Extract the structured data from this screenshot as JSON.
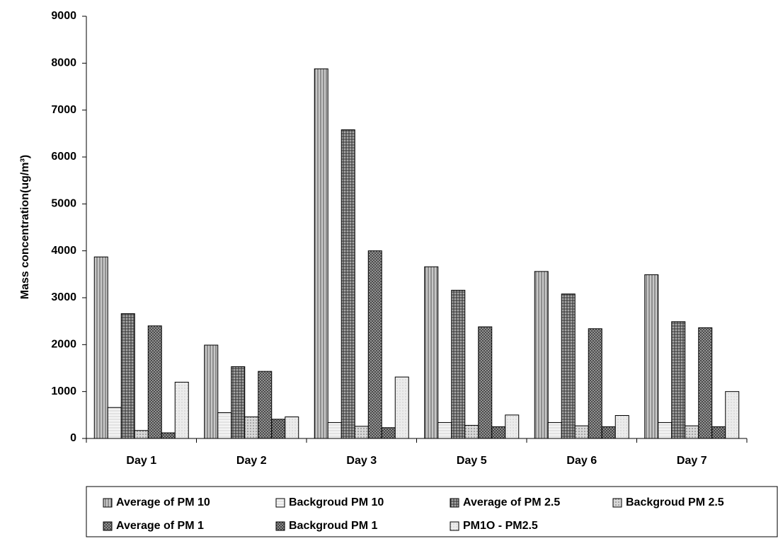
{
  "chart_data": {
    "type": "bar",
    "y_label": "Mass concentration(ug/m³)",
    "categories": [
      "Day 1",
      "Day 2",
      "Day 3",
      "Day 5",
      "Day 6",
      "Day 7"
    ],
    "series": [
      {
        "name": "Average of PM 10",
        "color": "#c8c8c8",
        "values": [
          3870,
          1990,
          7880,
          3660,
          3560,
          3490
        ]
      },
      {
        "name": "Backgroud PM 10",
        "color": "#f4f4f4",
        "values": [
          660,
          550,
          340,
          340,
          340,
          340
        ]
      },
      {
        "name": "Average of PM 2.5",
        "color": "#a8a8a8",
        "values": [
          2660,
          1530,
          6580,
          3160,
          3080,
          2490
        ]
      },
      {
        "name": "Backgroud PM 2.5",
        "color": "#d8d8d8",
        "values": [
          170,
          460,
          260,
          280,
          270,
          270
        ]
      },
      {
        "name": "Average of PM 1",
        "color": "#b0b0b0",
        "values": [
          2400,
          1430,
          4000,
          2380,
          2340,
          2360
        ]
      },
      {
        "name": "Backgroud PM 1",
        "color": "#8c8c8c",
        "values": [
          120,
          410,
          230,
          250,
          250,
          250
        ]
      },
      {
        "name": "PM1O - PM2.5",
        "color": "#ececec",
        "values": [
          1200,
          460,
          1310,
          500,
          490,
          1000
        ]
      }
    ],
    "ylim": [
      0,
      9000
    ],
    "yticks": [
      0,
      1000,
      2000,
      3000,
      4000,
      5000,
      6000,
      7000,
      8000,
      9000
    ],
    "grid": false,
    "legend": "bottom"
  }
}
